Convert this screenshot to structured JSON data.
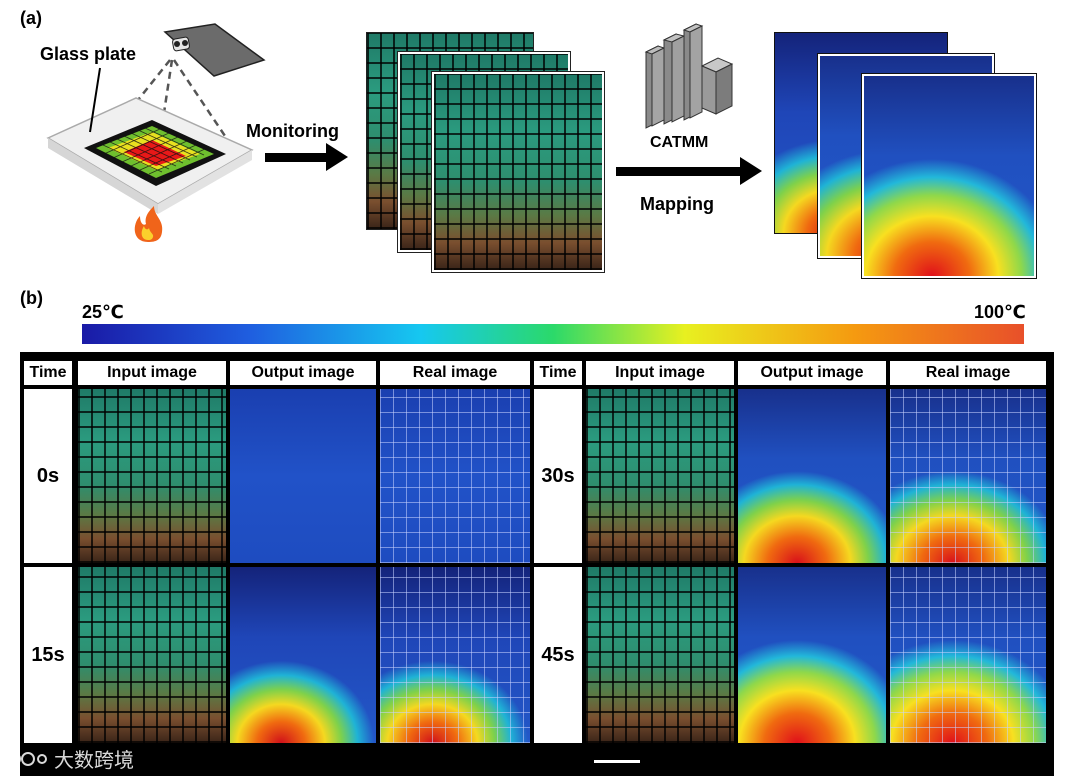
{
  "panel_a": {
    "letter": "(a)",
    "glass_plate_label": "Glass plate",
    "monitoring_label": "Monitoring",
    "catmm_label": "CATMM",
    "mapping_label": "Mapping"
  },
  "panel_b": {
    "letter": "(b)",
    "colorbar": {
      "min_label": "25℃",
      "max_label": "100℃"
    },
    "headers": [
      "Time",
      "Input image",
      "Output image",
      "Real image",
      "Time",
      "Input image",
      "Output image",
      "Real image"
    ],
    "times": [
      "0s",
      "15s",
      "30s",
      "45s"
    ]
  },
  "watermark": "大数跨境",
  "colors": {
    "colorbar_start": "#1a1aa6",
    "colorbar_end": "#e8502a",
    "hot": "#d0101a",
    "cool": "#2152c8"
  }
}
